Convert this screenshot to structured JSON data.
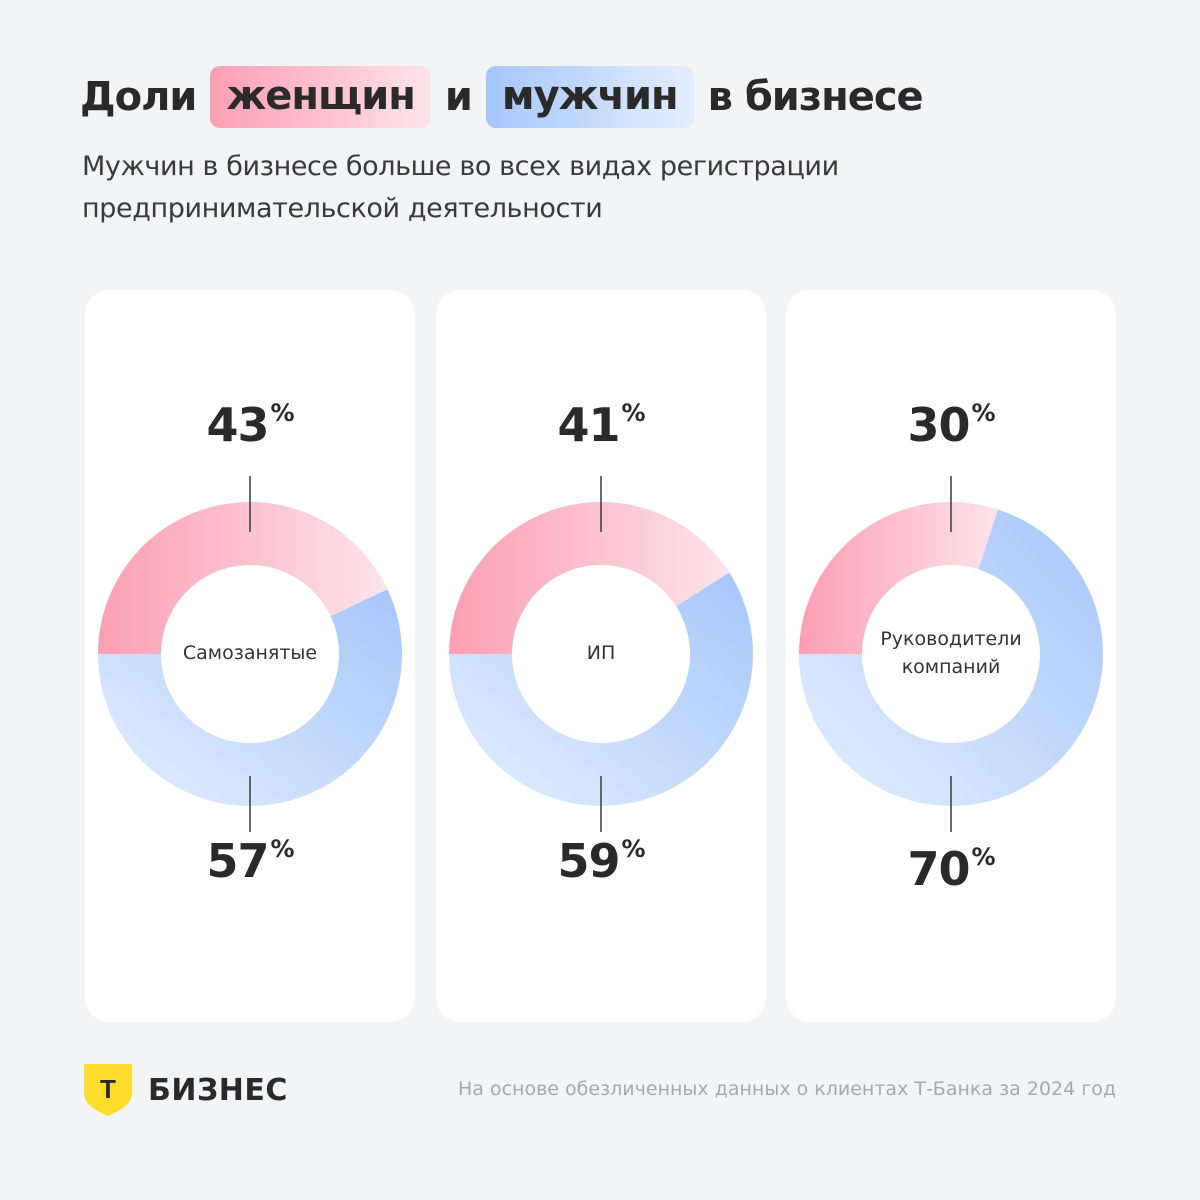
{
  "title": {
    "part1": "Доли",
    "women": "женщин",
    "and": "и",
    "men": "мужчин",
    "part2": "в бизнесе"
  },
  "subtitle": "Мужчин в бизнесе больше во всех видах регистрации предпринимательской деятельности",
  "colors": {
    "women": "#fb9fb2",
    "women_light": "#fde3ea",
    "men": "#a6c6fa",
    "men_light": "#e3eefe"
  },
  "chart_data": [
    {
      "type": "pie",
      "center_label": "Самозанятые",
      "categories": [
        "женщин",
        "мужчин"
      ],
      "values": [
        43,
        57
      ],
      "women_label": "43",
      "men_label": "57"
    },
    {
      "type": "pie",
      "center_label": "ИП",
      "categories": [
        "женщин",
        "мужчин"
      ],
      "values": [
        41,
        59
      ],
      "women_label": "41",
      "men_label": "59"
    },
    {
      "type": "pie",
      "center_label": "Руководители компаний",
      "categories": [
        "женщин",
        "мужчин"
      ],
      "values": [
        30,
        70
      ],
      "women_label": "30",
      "men_label": "70"
    }
  ],
  "percent_sign": "%",
  "logo": {
    "icon": "t-shield-icon",
    "letter": "Т",
    "word": "БИЗНЕС"
  },
  "footnote": "На основе обезличенных данных о клиентах Т-Банка за 2024 год"
}
